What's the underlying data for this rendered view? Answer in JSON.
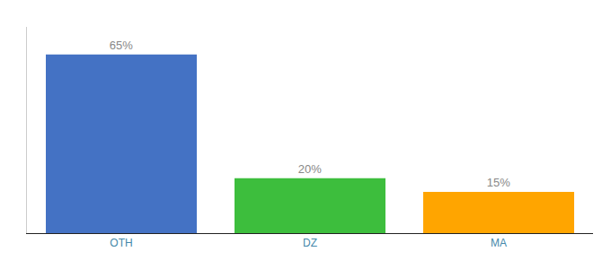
{
  "chart_data": {
    "type": "bar",
    "categories": [
      "OTH",
      "DZ",
      "MA"
    ],
    "values": [
      65,
      20,
      15
    ],
    "value_labels": [
      "65%",
      "20%",
      "15%"
    ],
    "data_labels": true,
    "colors": [
      "#4472C4",
      "#3DBE3D",
      "#FFA500"
    ],
    "ylim": [
      0,
      75
    ],
    "tick_labels": "x",
    "grid": false
  }
}
